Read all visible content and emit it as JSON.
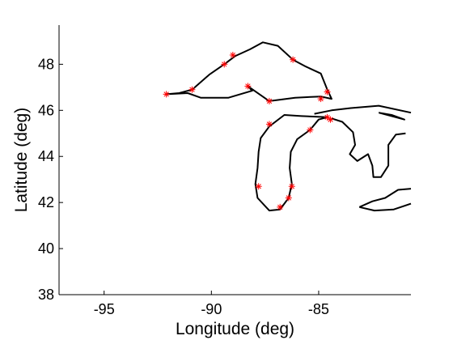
{
  "chart_data": {
    "type": "line",
    "title": "",
    "xlabel": "Longitude (deg)",
    "ylabel": "Latitude (deg)",
    "xlim": [
      -97.1,
      -80.7
    ],
    "ylim": [
      38,
      49.7
    ],
    "x_ticks": [
      -95,
      -90,
      -85
    ],
    "y_ticks": [
      38,
      40,
      42,
      44,
      46,
      48
    ],
    "x_tick_labels": [
      "-95",
      "-90",
      "-85"
    ],
    "y_tick_labels": [
      "38",
      "40",
      "42",
      "44",
      "46",
      "48"
    ],
    "grid": false,
    "line_color": "#000000",
    "marker_color": "#ff0000",
    "series": [
      {
        "type": "line",
        "points": [
          [
            -92.1,
            46.7
          ],
          [
            -91.5,
            46.75
          ],
          [
            -90.9,
            46.9
          ],
          [
            -90.1,
            47.55
          ],
          [
            -89.4,
            48.0
          ],
          [
            -88.9,
            48.35
          ],
          [
            -88.2,
            48.65
          ],
          [
            -87.6,
            48.95
          ],
          [
            -86.9,
            48.8
          ],
          [
            -86.2,
            48.2
          ],
          [
            -85.6,
            47.9
          ],
          [
            -84.9,
            47.6
          ],
          [
            -84.6,
            46.9
          ],
          [
            -84.4,
            46.5
          ],
          [
            -84.9,
            46.6
          ],
          [
            -86.1,
            46.55
          ],
          [
            -87.3,
            46.4
          ],
          [
            -88.3,
            47.05
          ],
          [
            -88.1,
            46.85
          ],
          [
            -89.2,
            46.55
          ],
          [
            -90.5,
            46.55
          ],
          [
            -91.1,
            46.75
          ],
          [
            -92.1,
            46.7
          ]
        ]
      },
      {
        "type": "line",
        "points": [
          [
            -87.3,
            45.3
          ],
          [
            -87.7,
            44.8
          ],
          [
            -87.8,
            44.2
          ],
          [
            -87.85,
            43.5
          ],
          [
            -87.95,
            42.8
          ],
          [
            -87.85,
            42.2
          ],
          [
            -87.3,
            41.65
          ],
          [
            -86.8,
            41.7
          ],
          [
            -86.4,
            42.2
          ],
          [
            -86.25,
            42.8
          ],
          [
            -86.35,
            43.5
          ],
          [
            -86.3,
            44.2
          ],
          [
            -86.0,
            44.75
          ],
          [
            -85.4,
            45.15
          ],
          [
            -85.0,
            45.6
          ],
          [
            -84.6,
            45.7
          ],
          [
            -85.8,
            45.75
          ],
          [
            -86.6,
            45.8
          ],
          [
            -87.3,
            45.3
          ]
        ]
      },
      {
        "type": "line",
        "points": [
          [
            -84.4,
            45.65
          ],
          [
            -83.9,
            45.5
          ],
          [
            -83.4,
            45.05
          ],
          [
            -83.3,
            44.5
          ],
          [
            -83.55,
            44.1
          ],
          [
            -83.2,
            43.8
          ],
          [
            -82.7,
            44.1
          ],
          [
            -82.5,
            43.6
          ],
          [
            -82.45,
            43.1
          ],
          [
            -82.1,
            43.1
          ],
          [
            -81.75,
            43.6
          ],
          [
            -81.75,
            44.5
          ],
          [
            -81.4,
            44.95
          ],
          [
            -80.95,
            45.0
          ]
        ]
      },
      {
        "type": "line",
        "points": [
          [
            -85.2,
            45.85
          ],
          [
            -84.4,
            46.0
          ],
          [
            -83.5,
            46.1
          ],
          [
            -82.2,
            46.2
          ],
          [
            -80.7,
            45.9
          ]
        ]
      },
      {
        "type": "line",
        "points": [
          [
            -82.2,
            45.9
          ],
          [
            -81.6,
            45.8
          ],
          [
            -81.0,
            45.6
          ],
          [
            -82.2,
            45.9
          ]
        ]
      },
      {
        "type": "line",
        "points": [
          [
            -83.1,
            41.8
          ],
          [
            -82.4,
            41.65
          ],
          [
            -81.5,
            41.7
          ],
          [
            -80.7,
            41.95
          ]
        ]
      },
      {
        "type": "line",
        "points": [
          [
            -80.7,
            42.6
          ],
          [
            -81.3,
            42.55
          ],
          [
            -81.9,
            42.2
          ],
          [
            -82.5,
            42.05
          ],
          [
            -83.1,
            41.8
          ]
        ]
      },
      {
        "type": "scatter",
        "points": [
          [
            -92.1,
            46.7
          ],
          [
            -90.9,
            46.9
          ],
          [
            -89.4,
            48.0
          ],
          [
            -89.0,
            48.4
          ],
          [
            -86.2,
            48.2
          ],
          [
            -84.6,
            46.8
          ],
          [
            -84.9,
            46.5
          ],
          [
            -88.3,
            47.05
          ],
          [
            -87.3,
            46.4
          ],
          [
            -87.3,
            45.4
          ],
          [
            -85.4,
            45.15
          ],
          [
            -84.6,
            45.7
          ],
          [
            -84.45,
            45.6
          ],
          [
            -87.8,
            42.7
          ],
          [
            -86.25,
            42.7
          ],
          [
            -86.4,
            42.2
          ],
          [
            -86.8,
            41.8
          ]
        ]
      }
    ]
  }
}
